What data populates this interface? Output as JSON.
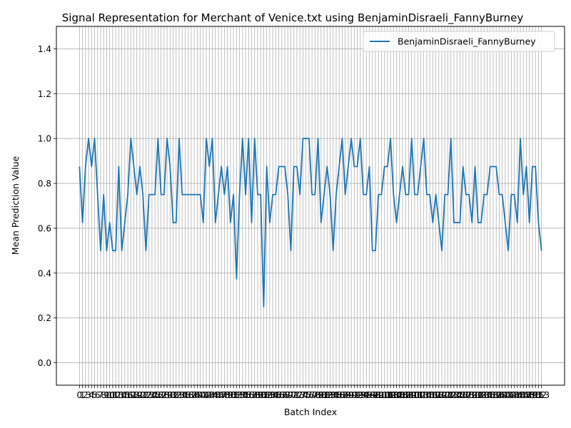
{
  "chart_data": {
    "type": "line",
    "title": "Signal Representation for Merchant of Venice.txt using BenjaminDisraeli_FannyBurney",
    "xlabel": "Batch Index",
    "ylabel": "Mean Prediction Value",
    "ylim": [
      -0.1,
      1.5
    ],
    "yticks": [
      0.0,
      0.2,
      0.4,
      0.6,
      0.8,
      1.0,
      1.2,
      1.4
    ],
    "ytick_labels": [
      "0.0",
      "0.2",
      "0.4",
      "0.6",
      "0.8",
      "1.0",
      "1.2",
      "1.4"
    ],
    "xlim": [
      -7.65,
      160.65
    ],
    "grid": true,
    "legend_position": "top-right",
    "series": [
      {
        "name": "BenjaminDisraeli_FannyBurney",
        "color": "#1f77b4",
        "x": [
          0,
          1,
          2,
          3,
          4,
          5,
          6,
          7,
          8,
          9,
          10,
          11,
          12,
          13,
          14,
          15,
          16,
          17,
          18,
          19,
          20,
          21,
          22,
          23,
          24,
          25,
          26,
          27,
          28,
          29,
          30,
          31,
          32,
          33,
          34,
          35,
          36,
          37,
          38,
          39,
          40,
          41,
          42,
          43,
          44,
          45,
          46,
          47,
          48,
          49,
          50,
          51,
          52,
          53,
          54,
          55,
          56,
          57,
          58,
          59,
          60,
          61,
          62,
          63,
          64,
          65,
          66,
          67,
          68,
          69,
          70,
          71,
          72,
          73,
          74,
          75,
          76,
          77,
          78,
          79,
          80,
          81,
          82,
          83,
          84,
          85,
          86,
          87,
          88,
          89,
          90,
          91,
          92,
          93,
          94,
          95,
          96,
          97,
          98,
          99,
          100,
          101,
          102,
          103,
          104,
          105,
          106,
          107,
          108,
          109,
          110,
          111,
          112,
          113,
          114,
          115,
          116,
          117,
          118,
          119,
          120,
          121,
          122,
          123,
          124,
          125,
          126,
          127,
          128,
          129,
          130,
          131,
          132,
          133,
          134,
          135,
          136,
          137,
          138,
          139,
          140,
          141,
          142,
          143,
          144,
          145,
          146,
          147,
          148,
          149,
          150,
          151,
          152,
          153
        ],
        "values": [
          0.875,
          0.625,
          0.875,
          1.0,
          0.875,
          1.0,
          0.75,
          0.5,
          0.75,
          0.5,
          0.625,
          0.5,
          0.5,
          0.875,
          0.5,
          0.625,
          0.75,
          1.0,
          0.875,
          0.75,
          0.875,
          0.75,
          0.5,
          0.75,
          0.75,
          0.75,
          1.0,
          0.75,
          0.75,
          1.0,
          0.875,
          0.625,
          0.625,
          1.0,
          0.75,
          0.75,
          0.75,
          0.75,
          0.75,
          0.75,
          0.75,
          0.625,
          1.0,
          0.875,
          1.0,
          0.625,
          0.75,
          0.875,
          0.75,
          0.875,
          0.625,
          0.75,
          0.375,
          0.75,
          1.0,
          0.75,
          1.0,
          0.625,
          1.0,
          0.75,
          0.75,
          0.25,
          0.875,
          0.625,
          0.75,
          0.75,
          0.875,
          0.875,
          0.875,
          0.75,
          0.5,
          0.875,
          0.875,
          0.75,
          1.0,
          1.0,
          1.0,
          0.75,
          0.75,
          1.0,
          0.625,
          0.75,
          0.875,
          0.75,
          0.5,
          0.75,
          0.875,
          1.0,
          0.75,
          0.875,
          1.0,
          0.875,
          0.875,
          1.0,
          0.75,
          0.75,
          0.875,
          0.5,
          0.5,
          0.75,
          0.75,
          0.875,
          0.875,
          1.0,
          0.75,
          0.625,
          0.75,
          0.875,
          0.75,
          0.75,
          1.0,
          0.75,
          0.75,
          0.875,
          1.0,
          0.75,
          0.75,
          0.625,
          0.75,
          0.625,
          0.5,
          0.75,
          0.75,
          1.0,
          0.625,
          0.625,
          0.625,
          0.875,
          0.75,
          0.75,
          0.625,
          0.875,
          0.625,
          0.625,
          0.75,
          0.75,
          0.875,
          0.875,
          0.875,
          0.75,
          0.75,
          0.625,
          0.5,
          0.75,
          0.75,
          0.625,
          1.0,
          0.75,
          0.875,
          0.625,
          0.875,
          0.875,
          0.625,
          0.5
        ]
      }
    ]
  }
}
